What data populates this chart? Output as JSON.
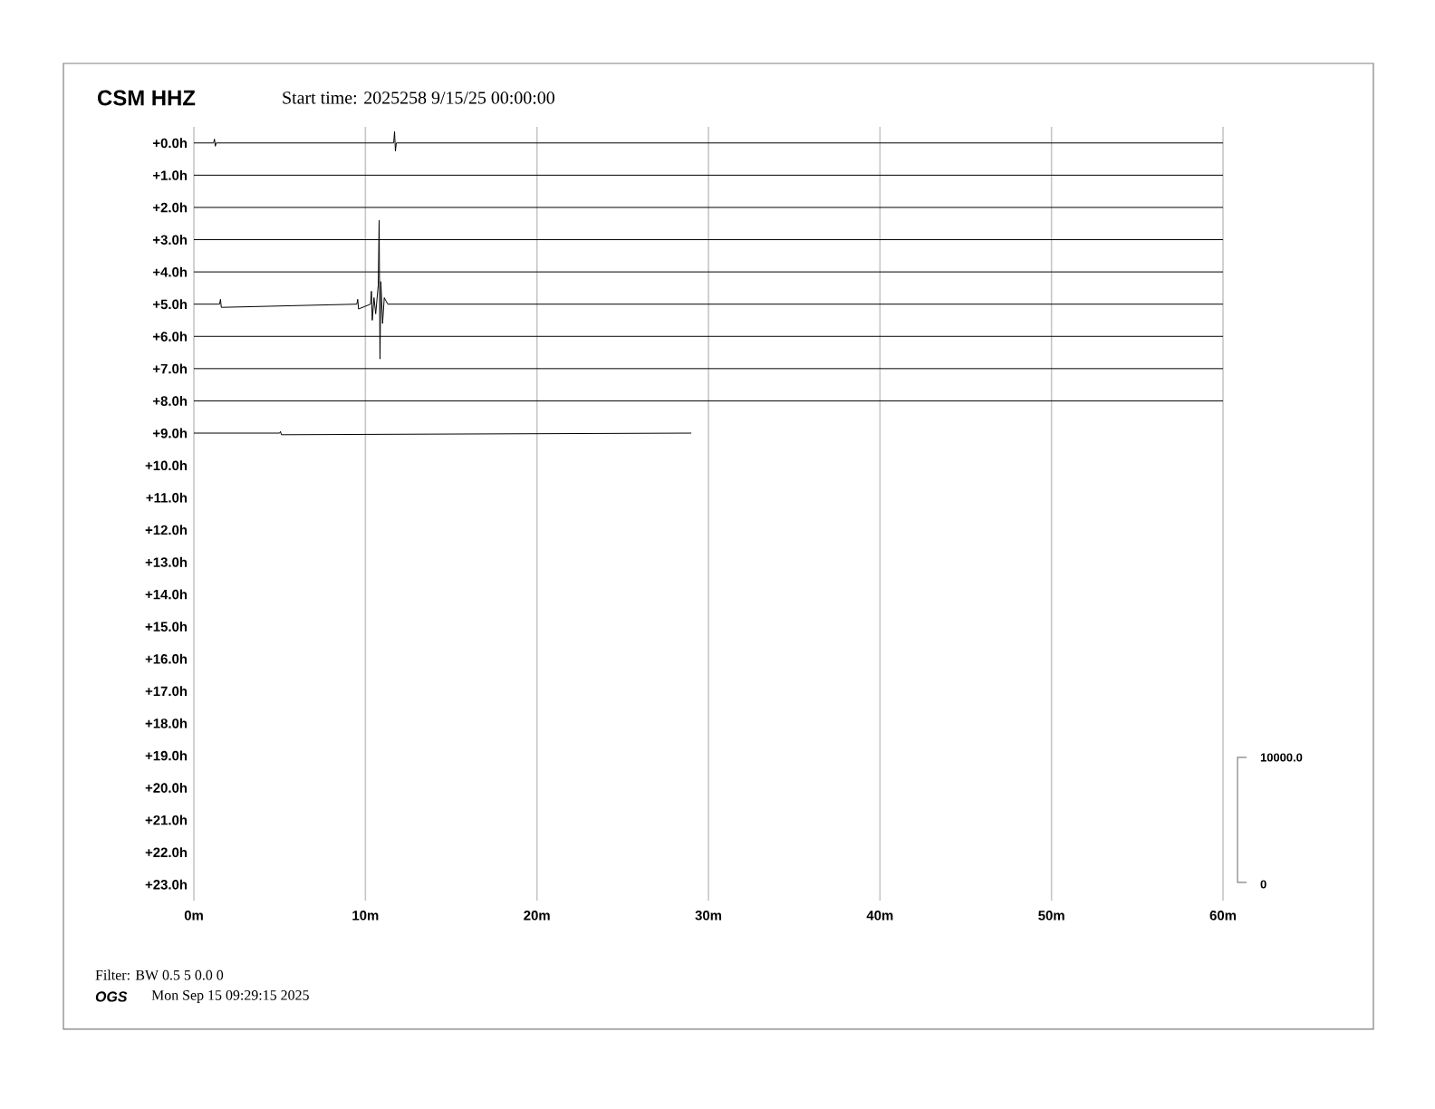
{
  "chart_data": {
    "type": "line",
    "title": "CSM HHZ",
    "subtitle": "Start time: 2025258  9/15/25 00:00:00",
    "xlim": [
      0,
      60
    ],
    "xticks": [
      {
        "value": 0,
        "label": "0m"
      },
      {
        "value": 10,
        "label": "10m"
      },
      {
        "value": 20,
        "label": "20m"
      },
      {
        "value": 30,
        "label": "30m"
      },
      {
        "value": 40,
        "label": "40m"
      },
      {
        "value": 50,
        "label": "50m"
      },
      {
        "value": 60,
        "label": "60m"
      }
    ],
    "ylim": [
      23.5,
      -0.5
    ],
    "yticks": [
      {
        "value": 0,
        "label": "+0.0h"
      },
      {
        "value": 1,
        "label": "+1.0h"
      },
      {
        "value": 2,
        "label": "+2.0h"
      },
      {
        "value": 3,
        "label": "+3.0h"
      },
      {
        "value": 4,
        "label": "+4.0h"
      },
      {
        "value": 5,
        "label": "+5.0h"
      },
      {
        "value": 6,
        "label": "+6.0h"
      },
      {
        "value": 7,
        "label": "+7.0h"
      },
      {
        "value": 8,
        "label": "+8.0h"
      },
      {
        "value": 9,
        "label": "+9.0h"
      },
      {
        "value": 10,
        "label": "+10.0h"
      },
      {
        "value": 11,
        "label": "+11.0h"
      },
      {
        "value": 12,
        "label": "+12.0h"
      },
      {
        "value": 13,
        "label": "+13.0h"
      },
      {
        "value": 14,
        "label": "+14.0h"
      },
      {
        "value": 15,
        "label": "+15.0h"
      },
      {
        "value": 16,
        "label": "+16.0h"
      },
      {
        "value": 17,
        "label": "+17.0h"
      },
      {
        "value": 18,
        "label": "+18.0h"
      },
      {
        "value": 19,
        "label": "+19.0h"
      },
      {
        "value": 20,
        "label": "+20.0h"
      },
      {
        "value": 21,
        "label": "+21.0h"
      },
      {
        "value": 22,
        "label": "+22.0h"
      },
      {
        "value": 23,
        "label": "+23.0h"
      }
    ],
    "grid": "x",
    "marker": "none",
    "line_style": "solid",
    "series": [
      {
        "color": "#000000",
        "x": [
          0,
          1.15,
          1.2,
          1.25,
          1.3,
          11.65,
          11.7,
          11.75,
          11.8,
          18.6,
          22.8,
          60
        ],
        "values": [
          0,
          0,
          -0.12,
          0.1,
          0,
          0,
          -0.35,
          0.25,
          0,
          0,
          0,
          0
        ]
      },
      {
        "color": "#000000",
        "x": [
          0,
          30,
          60
        ],
        "values": [
          1,
          1,
          1
        ]
      },
      {
        "color": "#000000",
        "x": [
          0,
          30,
          60
        ],
        "values": [
          2,
          2,
          2
        ]
      },
      {
        "color": "#000000",
        "x": [
          0,
          30,
          60
        ],
        "values": [
          3,
          3,
          3
        ]
      },
      {
        "color": "#000000",
        "x": [
          0,
          30,
          60
        ],
        "values": [
          4,
          4,
          4
        ]
      },
      {
        "color": "#000000",
        "x": [
          0,
          1.5,
          1.55,
          1.6,
          9.5,
          9.55,
          9.6,
          10.3,
          10.35,
          10.4,
          10.5,
          10.6,
          10.75,
          10.8,
          10.85,
          10.9,
          11.0,
          11.1,
          11.3,
          60
        ],
        "values": [
          5,
          5,
          4.85,
          5.1,
          5,
          4.85,
          5.15,
          5,
          4.6,
          5.5,
          4.8,
          5.3,
          4.4,
          2.4,
          6.7,
          4.3,
          5.6,
          4.8,
          5,
          5
        ]
      },
      {
        "color": "#000000",
        "x": [
          0,
          30,
          60
        ],
        "values": [
          6,
          6,
          6
        ]
      },
      {
        "color": "#000000",
        "x": [
          0,
          30,
          60
        ],
        "values": [
          7,
          7,
          7
        ]
      },
      {
        "color": "#000000",
        "x": [
          0,
          30,
          60
        ],
        "values": [
          8,
          8,
          8
        ]
      },
      {
        "color": "#000000",
        "x": [
          0,
          5,
          5.05,
          5.1,
          29
        ],
        "values": [
          9,
          9,
          8.95,
          9.05,
          9
        ]
      }
    ],
    "annotations": [
      "10000.0",
      "0",
      "Filter: BW 0.5 5 0.0 0",
      "OGS",
      "Mon Sep 15 09:29:15 2025"
    ]
  }
}
